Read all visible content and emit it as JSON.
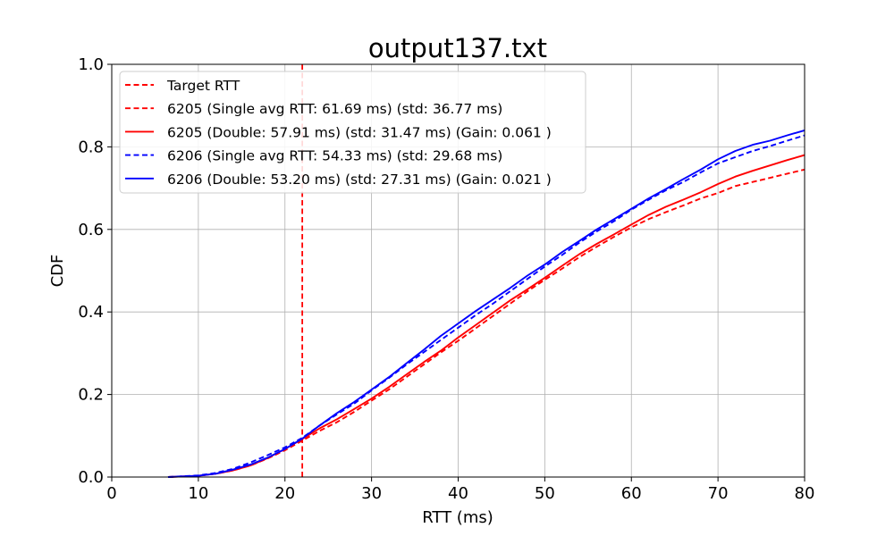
{
  "chart_data": {
    "type": "line",
    "title": "output137.txt",
    "xlabel": "RTT (ms)",
    "ylabel": "CDF",
    "xlim": [
      0,
      80
    ],
    "ylim": [
      0,
      1.0
    ],
    "x_ticks": [
      0,
      10,
      20,
      30,
      40,
      50,
      60,
      70,
      80
    ],
    "y_ticks": [
      "0.0",
      "0.2",
      "0.4",
      "0.6",
      "0.8",
      "1.0"
    ],
    "grid": true,
    "legend_position": "top-left",
    "target_rtt": {
      "name": "Target RTT",
      "x": 22,
      "color": "#ff0000",
      "style": "dashed"
    },
    "series": [
      {
        "name": "6205 (Single avg RTT: 61.69 ms) (std: 36.77 ms)",
        "color": "#ff0000",
        "style": "dashed",
        "x": [
          6.5,
          10,
          12,
          14,
          16,
          18,
          20,
          22,
          24,
          26,
          28,
          30,
          32,
          34,
          36,
          38,
          40,
          42,
          44,
          46,
          48,
          50,
          52,
          54,
          56,
          58,
          60,
          62,
          64,
          66,
          68,
          70,
          72,
          74,
          76,
          78,
          80
        ],
        "y": [
          0.0,
          0.003,
          0.008,
          0.016,
          0.028,
          0.045,
          0.065,
          0.088,
          0.112,
          0.133,
          0.158,
          0.185,
          0.212,
          0.242,
          0.272,
          0.302,
          0.33,
          0.36,
          0.39,
          0.42,
          0.45,
          0.478,
          0.505,
          0.533,
          0.558,
          0.582,
          0.605,
          0.625,
          0.642,
          0.658,
          0.675,
          0.688,
          0.705,
          0.715,
          0.725,
          0.735,
          0.745
        ]
      },
      {
        "name": "6205 (Double: 57.91 ms) (std: 31.47 ms) (Gain: 0.061 )",
        "color": "#ff0000",
        "style": "solid",
        "x": [
          6.5,
          10,
          12,
          14,
          16,
          18,
          20,
          22,
          24,
          26,
          28,
          30,
          32,
          34,
          36,
          38,
          40,
          42,
          44,
          46,
          48,
          50,
          52,
          54,
          56,
          58,
          60,
          62,
          64,
          66,
          68,
          70,
          72,
          74,
          76,
          78,
          80
        ],
        "y": [
          0.0,
          0.003,
          0.008,
          0.016,
          0.028,
          0.046,
          0.068,
          0.092,
          0.118,
          0.14,
          0.165,
          0.19,
          0.218,
          0.248,
          0.278,
          0.306,
          0.338,
          0.368,
          0.398,
          0.428,
          0.455,
          0.483,
          0.512,
          0.54,
          0.565,
          0.588,
          0.612,
          0.635,
          0.655,
          0.672,
          0.69,
          0.71,
          0.728,
          0.742,
          0.755,
          0.768,
          0.78
        ]
      },
      {
        "name": "6206 (Single avg RTT: 54.33 ms) (std: 29.68 ms)",
        "color": "#0000ff",
        "style": "dashed",
        "x": [
          6.5,
          10,
          12,
          14,
          16,
          18,
          20,
          22,
          24,
          26,
          28,
          30,
          32,
          34,
          36,
          38,
          40,
          42,
          44,
          46,
          48,
          50,
          52,
          54,
          56,
          58,
          60,
          62,
          64,
          66,
          68,
          70,
          72,
          74,
          76,
          78,
          80
        ],
        "y": [
          0.0,
          0.004,
          0.01,
          0.02,
          0.035,
          0.053,
          0.072,
          0.095,
          0.125,
          0.152,
          0.178,
          0.21,
          0.24,
          0.272,
          0.302,
          0.332,
          0.362,
          0.392,
          0.42,
          0.45,
          0.48,
          0.51,
          0.538,
          0.568,
          0.595,
          0.62,
          0.648,
          0.672,
          0.695,
          0.715,
          0.738,
          0.76,
          0.775,
          0.79,
          0.802,
          0.815,
          0.828
        ]
      },
      {
        "name": "6206 (Double: 53.20 ms) (std: 27.31 ms) (Gain: 0.021 )",
        "color": "#0000ff",
        "style": "solid",
        "x": [
          6.5,
          10,
          12,
          14,
          16,
          18,
          20,
          22,
          24,
          26,
          28,
          30,
          32,
          34,
          36,
          38,
          40,
          42,
          44,
          46,
          48,
          50,
          52,
          54,
          56,
          58,
          60,
          62,
          64,
          66,
          68,
          70,
          72,
          74,
          76,
          78,
          80
        ],
        "y": [
          0.0,
          0.003,
          0.008,
          0.018,
          0.03,
          0.047,
          0.068,
          0.093,
          0.125,
          0.155,
          0.182,
          0.212,
          0.242,
          0.275,
          0.308,
          0.342,
          0.372,
          0.402,
          0.43,
          0.458,
          0.488,
          0.515,
          0.545,
          0.572,
          0.6,
          0.625,
          0.65,
          0.675,
          0.698,
          0.722,
          0.745,
          0.77,
          0.79,
          0.805,
          0.815,
          0.828,
          0.84
        ]
      }
    ]
  }
}
